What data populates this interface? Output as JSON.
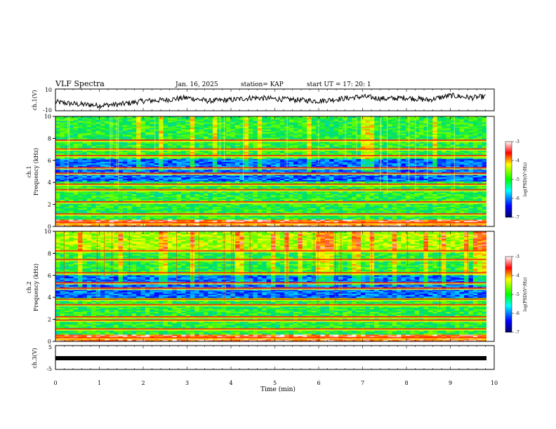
{
  "header": {
    "title": "VLF Spectra",
    "date": "Jan. 16, 2025",
    "station": "station= KAP",
    "start": "start UT = 17: 20: 1"
  },
  "chart_data": [
    {
      "type": "line",
      "name": "ch1-waveform",
      "ylabel": "ch.1(V)",
      "ylim": [
        -10,
        10
      ],
      "yticks": [
        10,
        -10
      ],
      "xlim": [
        0,
        10
      ],
      "description_points_min": [
        0,
        0.5,
        1,
        1.5,
        2,
        2.5,
        3,
        3.5,
        4,
        4.5,
        5,
        5.5,
        6,
        6.5,
        7,
        7.5,
        8,
        8.5,
        9,
        9.5,
        9.8
      ],
      "values_v": [
        -2,
        -4,
        -5,
        -4,
        -1,
        0,
        2,
        -1,
        0,
        2,
        1,
        0,
        -1,
        1,
        3,
        1,
        2,
        0,
        4,
        2,
        3
      ]
    },
    {
      "type": "heatmap",
      "name": "ch1-spectrogram",
      "ylabel": "ch.1 Frequency (kHz)",
      "ylim": [
        0,
        10
      ],
      "yticks": [
        0,
        2,
        4,
        6,
        8,
        10
      ],
      "xlim": [
        0,
        9.8
      ],
      "colorbar": {
        "label": "log(PSD)(V²/Hz)",
        "range": [
          -7,
          -3
        ],
        "ticks": [
          "-3",
          "-4",
          "-5",
          "-6",
          "-7"
        ]
      },
      "bands_khz": [
        0.3,
        1.1,
        2.2,
        3.3,
        3.8,
        4.8,
        5.3,
        6.4,
        7.0,
        7.8
      ]
    },
    {
      "type": "heatmap",
      "name": "ch2-spectrogram",
      "ylabel": "ch.2 Frequency (kHz)",
      "ylim": [
        0,
        10
      ],
      "yticks": [
        0,
        2,
        4,
        6,
        8,
        10
      ],
      "xlim": [
        0,
        9.8
      ],
      "colorbar": {
        "label": "log(PSD)(V²/Hz)",
        "range": [
          -7,
          -3
        ],
        "ticks": [
          "-3",
          "-4",
          "-5",
          "-6",
          "-7"
        ]
      },
      "bands_khz": [
        0.3,
        1.1,
        1.9,
        2.2,
        3.3,
        3.8,
        4.8,
        5.3,
        6.2,
        7.4,
        8.2
      ]
    },
    {
      "type": "line",
      "name": "ch3-waveform",
      "ylabel": "ch.3(V)",
      "ylim": [
        -5,
        5
      ],
      "yticks": [
        "5",
        "-5"
      ],
      "xlim": [
        0,
        10
      ],
      "values_v": [
        0,
        0
      ],
      "x": [
        0,
        9.8
      ]
    }
  ],
  "xaxis": {
    "label": "Time (min)",
    "ticks": [
      "0",
      "1",
      "2",
      "3",
      "4",
      "5",
      "6",
      "7",
      "8",
      "9",
      "10"
    ]
  },
  "colors": {
    "low": "#00008b",
    "mid": "#00ff00",
    "high": "#ff0000"
  }
}
